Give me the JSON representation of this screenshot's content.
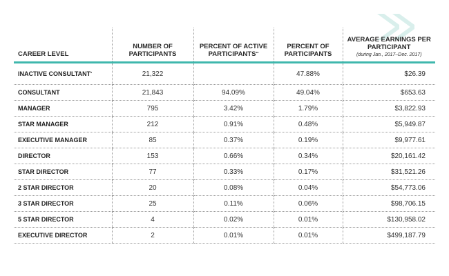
{
  "headers": {
    "career_level": "CAREER LEVEL",
    "num_participants": "NUMBER OF PARTICIPANTS",
    "pct_active": "PERCENT OF ACTIVE PARTICIPANTS",
    "pct_active_mark": "**",
    "pct_participants": "PERCENT OF PARTICIPANTS",
    "avg_earnings": "AVERAGE EARNINGS PER PARTICIPANT",
    "avg_earnings_note": "(during Jan., 2017–Dec. 2017)"
  },
  "rows": [
    {
      "level": "INACTIVE CONSULTANT",
      "mark": "*",
      "participants": "21,322",
      "pct_active": "",
      "pct": "47.88%",
      "earnings": "$26.39"
    },
    {
      "level": "CONSULTANT",
      "mark": "",
      "participants": "21,843",
      "pct_active": "94.09%",
      "pct": "49.04%",
      "earnings": "$653.63"
    },
    {
      "level": "MANAGER",
      "mark": "",
      "participants": "795",
      "pct_active": "3.42%",
      "pct": "1.79%",
      "earnings": "$3,822.93"
    },
    {
      "level": "STAR MANAGER",
      "mark": "",
      "participants": "212",
      "pct_active": "0.91%",
      "pct": "0.48%",
      "earnings": "$5,949.87"
    },
    {
      "level": "EXECUTIVE MANAGER",
      "mark": "",
      "participants": "85",
      "pct_active": "0.37%",
      "pct": "0.19%",
      "earnings": "$9,977.61"
    },
    {
      "level": "DIRECTOR",
      "mark": "",
      "participants": "153",
      "pct_active": "0.66%",
      "pct": "0.34%",
      "earnings": "$20,161.42"
    },
    {
      "level": "STAR DIRECTOR",
      "mark": "",
      "participants": "77",
      "pct_active": "0.33%",
      "pct": "0.17%",
      "earnings": "$31,521.26"
    },
    {
      "level": "2 STAR DIRECTOR",
      "mark": "",
      "participants": "20",
      "pct_active": "0.08%",
      "pct": "0.04%",
      "earnings": "$54,773.06"
    },
    {
      "level": "3 STAR DIRECTOR",
      "mark": "",
      "participants": "25",
      "pct_active": "0.11%",
      "pct": "0.06%",
      "earnings": "$98,706.15"
    },
    {
      "level": "5 STAR DIRECTOR",
      "mark": "",
      "participants": "4",
      "pct_active": "0.02%",
      "pct": "0.01%",
      "earnings": "$130,958.02"
    },
    {
      "level": "EXECUTIVE DIRECTOR",
      "mark": "",
      "participants": "2",
      "pct_active": "0.01%",
      "pct": "0.01%",
      "earnings": "$499,187.79"
    }
  ],
  "colors": {
    "accent": "#3fb7ad",
    "logo": "#d9efec"
  },
  "logo_icon": "brand-logo-icon"
}
